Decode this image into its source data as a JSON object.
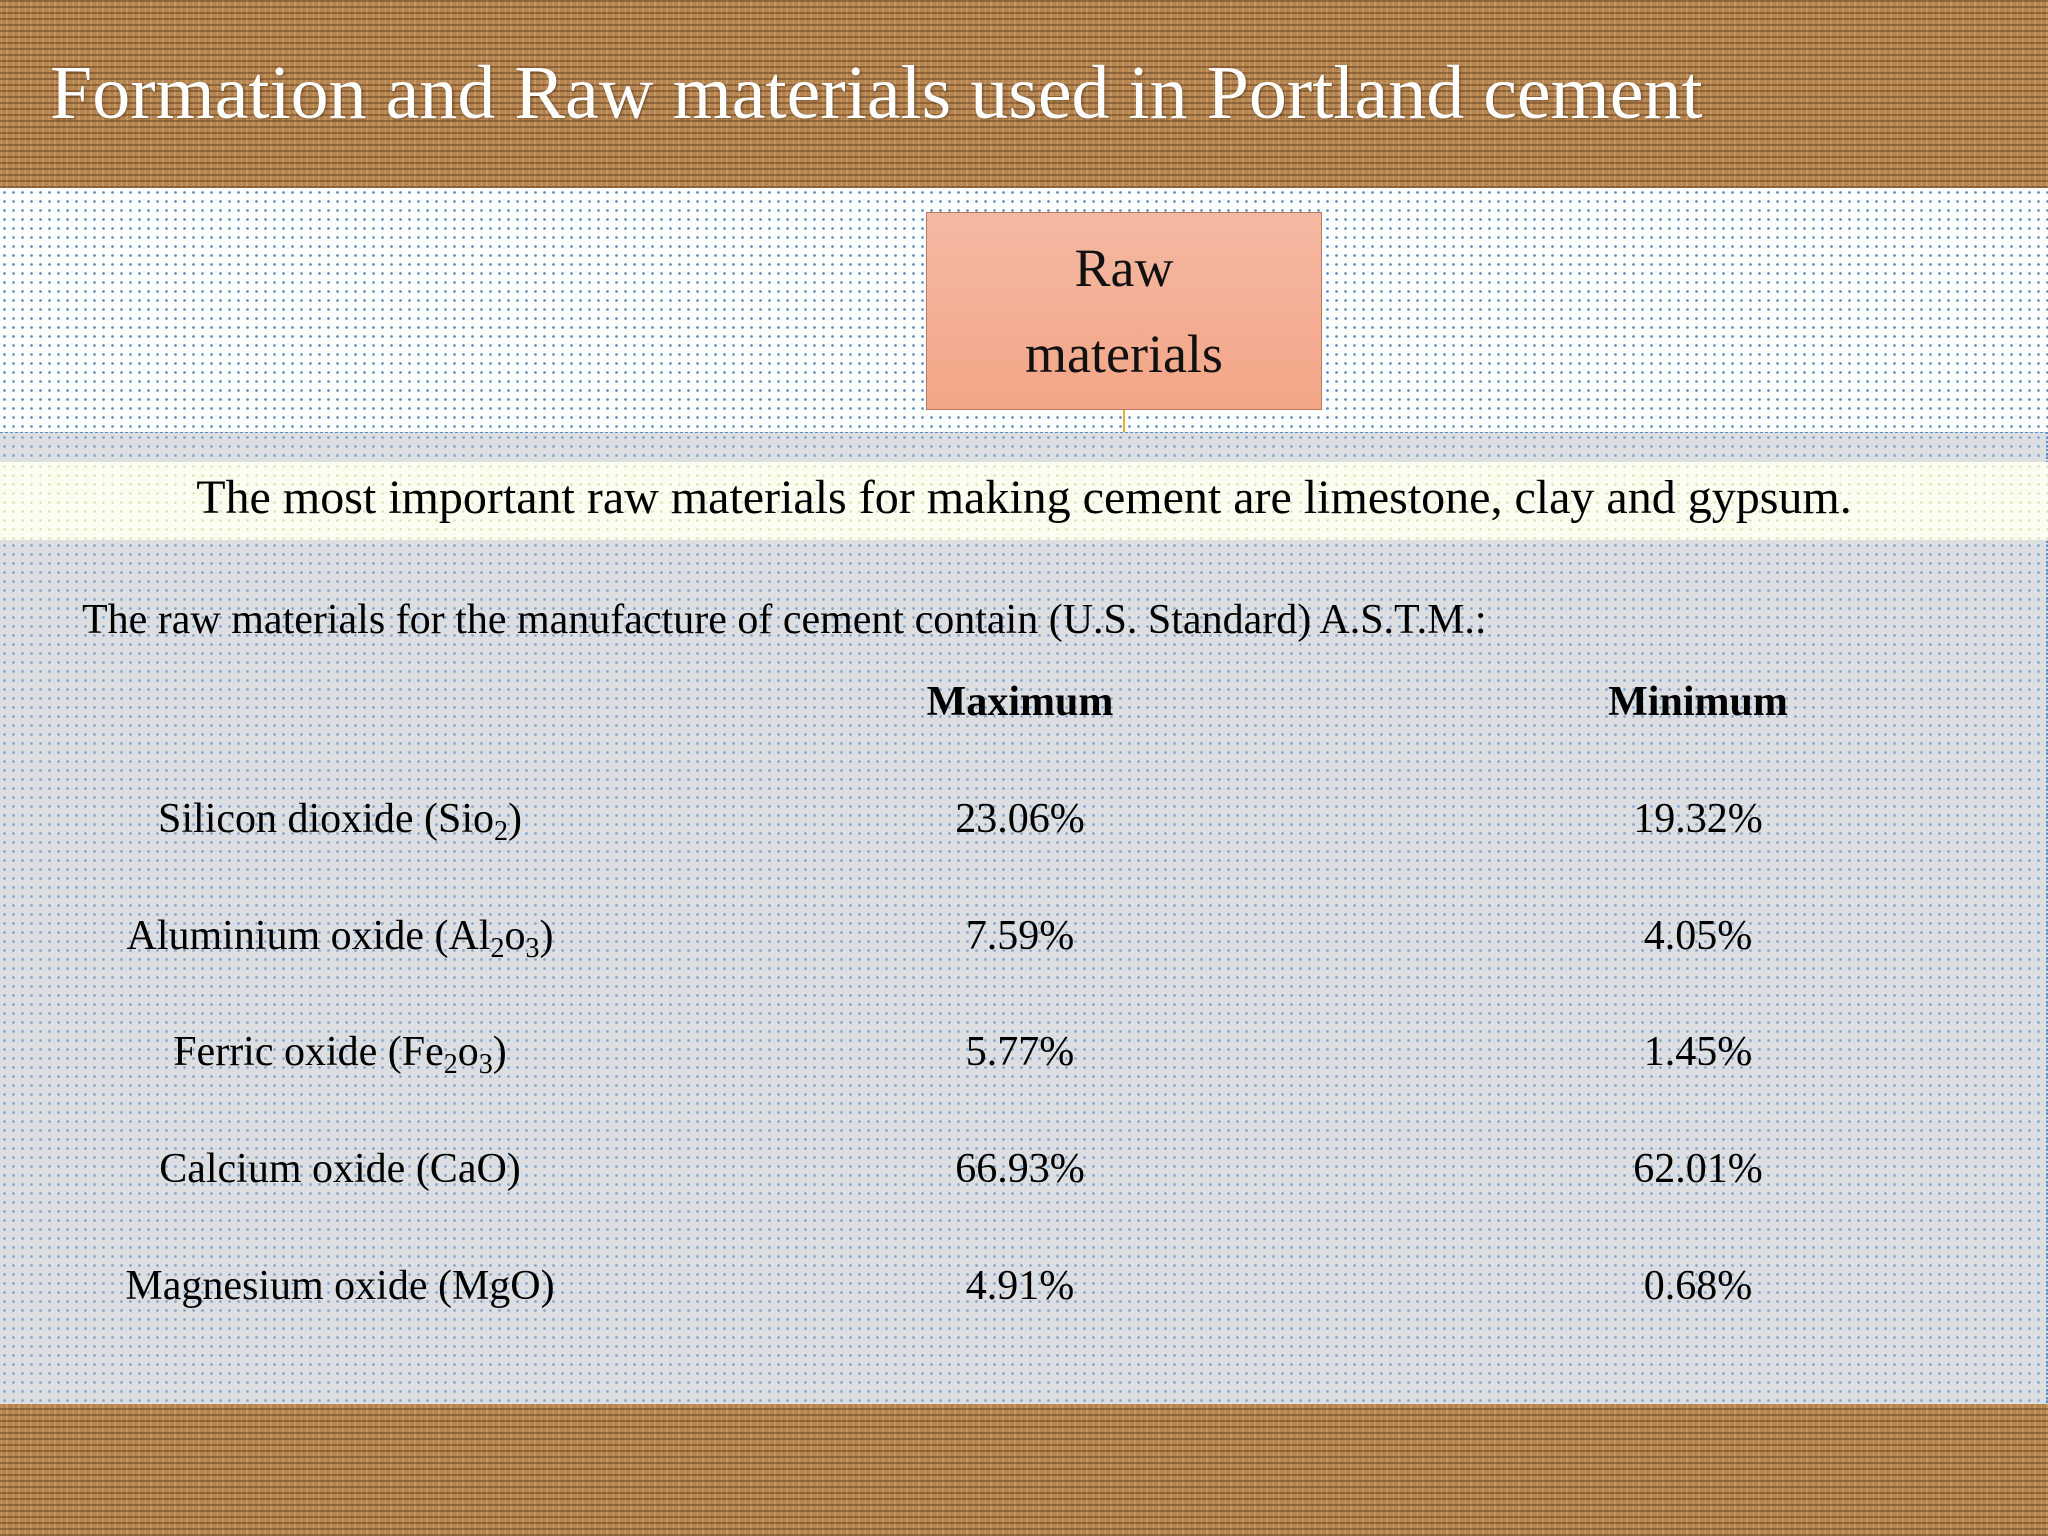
{
  "title": "Formation and Raw materials used  in Portland cement",
  "box_label": "Raw materials",
  "statement": "The most important raw materials for making cement are limestone, clay and gypsum.",
  "intro": "The raw materials for the manufacture of cement contain (U.S. Standard) A.S.T.M.:",
  "table": {
    "headers": {
      "maximum": "Maximum",
      "minimum": "Minimum"
    },
    "rows": [
      {
        "name_prefix": "Silicon dioxide (Sio",
        "sub1": "2",
        "mid": "",
        "sub2": "",
        "suffix": ")",
        "max": "23.06%",
        "min": "19.32%"
      },
      {
        "name_prefix": "Aluminium oxide (Al",
        "sub1": "2",
        "mid": "o",
        "sub2": "3",
        "suffix": ")",
        "max": "7.59%",
        "min": "4.05%"
      },
      {
        "name_prefix": "Ferric oxide (Fe",
        "sub1": "2",
        "mid": "o",
        "sub2": "3",
        "suffix": ")",
        "max": "5.77%",
        "min": "1.45%"
      },
      {
        "name_prefix": "Calcium oxide (CaO)",
        "sub1": "",
        "mid": "",
        "sub2": "",
        "suffix": "",
        "max": "66.93%",
        "min": "62.01%"
      },
      {
        "name_prefix": "Magnesium oxide (MgO)",
        "sub1": "",
        "mid": "",
        "sub2": "",
        "suffix": "",
        "max": "4.91%",
        "min": "0.68%"
      }
    ]
  },
  "colors": {
    "burlap": "#b5844f",
    "box_fill": "#f4a587",
    "dots": "#5b8fc4"
  }
}
